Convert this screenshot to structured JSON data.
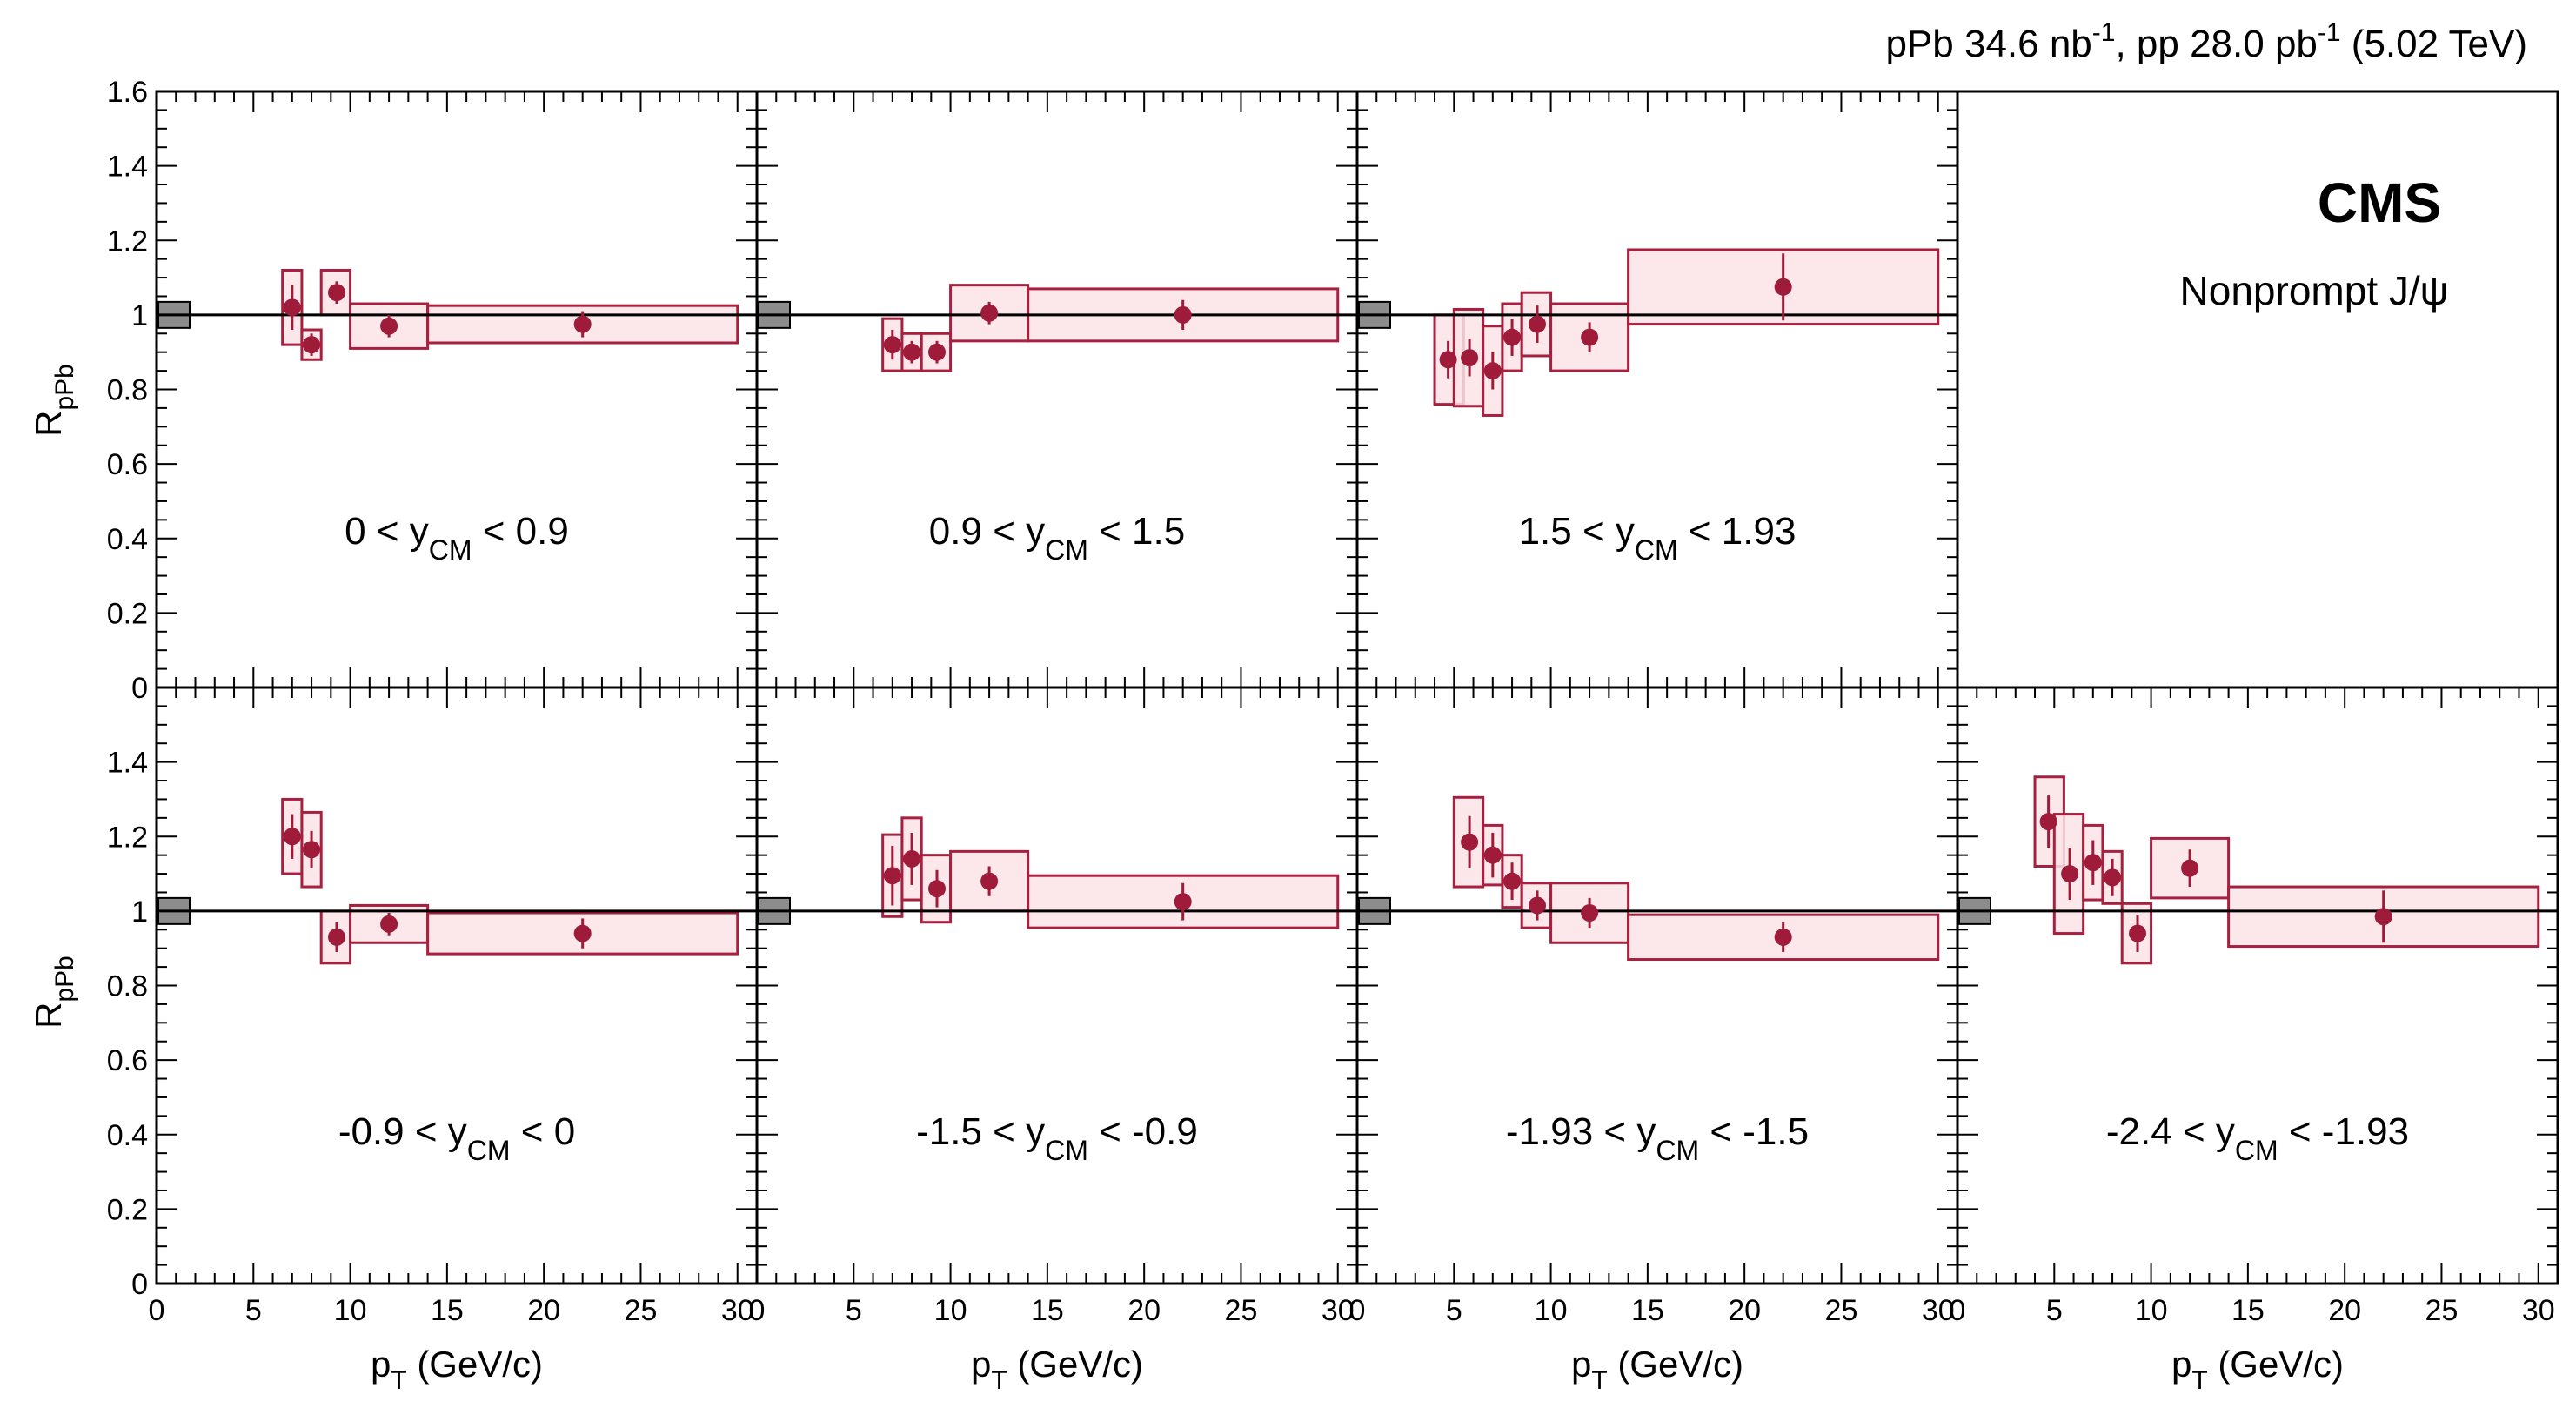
{
  "chart_data": {
    "type": "scatter",
    "title": "pPb 34.6 nb-1, pp 28.0 pb-1 (5.02 TeV)",
    "header": {
      "pPb_label": "pPb 34.6 nb",
      "pPb_exp": "-1",
      "pp_label": ", pp 28.0 pb",
      "pp_exp": "-1",
      "energy": " (5.02 TeV)"
    },
    "experiment": "CMS",
    "subtitle": "Nonprompt J/ψ",
    "xlabel": {
      "main": "p",
      "sub": "T",
      "rest": " (GeV/c)"
    },
    "ylabel": {
      "main": "R",
      "sub": "pPb"
    },
    "xlim": [
      0,
      31
    ],
    "ylim": [
      0,
      1.6
    ],
    "x_ticks": [
      "0",
      "5",
      "10",
      "15",
      "20",
      "25",
      "30"
    ],
    "y_ticks_top": [
      "0",
      "0.2",
      "0.4",
      "0.6",
      "0.8",
      "1",
      "1.2",
      "1.4",
      "1.6"
    ],
    "y_ticks_bottom": [
      "0",
      "0.2",
      "0.4",
      "0.6",
      "0.8",
      "1",
      "1.2",
      "1.4"
    ],
    "reference_line": 1.0,
    "global_uncertainty": [
      0.965,
      1.035
    ],
    "panels": [
      {
        "row": 0,
        "col": 0,
        "label": {
          "lo": "0 < y",
          "sub": "CM",
          "hi": " < 0.9"
        },
        "points": [
          {
            "x": 7.0,
            "y": 1.02,
            "stat": 0.06,
            "sys": 0.1,
            "xlo": 6.5,
            "xhi": 7.5
          },
          {
            "x": 8.0,
            "y": 0.92,
            "stat": 0.03,
            "sys": 0.04,
            "xlo": 7.5,
            "xhi": 8.5
          },
          {
            "x": 9.3,
            "y": 1.06,
            "stat": 0.03,
            "sys": 0.06,
            "xlo": 8.5,
            "xhi": 10.0
          },
          {
            "x": 12.0,
            "y": 0.97,
            "stat": 0.03,
            "sys": 0.06,
            "xlo": 10.0,
            "xhi": 14.0
          },
          {
            "x": 22.0,
            "y": 0.975,
            "stat": 0.035,
            "sys": 0.05,
            "xlo": 14.0,
            "xhi": 30.0
          }
        ]
      },
      {
        "row": 0,
        "col": 1,
        "label": {
          "lo": "0.9 < y",
          "sub": "CM",
          "hi": " < 1.5"
        },
        "points": [
          {
            "x": 7.0,
            "y": 0.92,
            "stat": 0.04,
            "sys": 0.07,
            "xlo": 6.5,
            "xhi": 7.5
          },
          {
            "x": 8.0,
            "y": 0.9,
            "stat": 0.03,
            "sys": 0.05,
            "xlo": 7.5,
            "xhi": 8.5
          },
          {
            "x": 9.3,
            "y": 0.9,
            "stat": 0.03,
            "sys": 0.05,
            "xlo": 8.5,
            "xhi": 10.0
          },
          {
            "x": 12.0,
            "y": 1.005,
            "stat": 0.03,
            "sys": 0.075,
            "xlo": 10.0,
            "xhi": 14.0
          },
          {
            "x": 22.0,
            "y": 1.0,
            "stat": 0.04,
            "sys": 0.07,
            "xlo": 14.0,
            "xhi": 30.0
          }
        ]
      },
      {
        "row": 0,
        "col": 2,
        "label": {
          "lo": "1.5 < y",
          "sub": "CM",
          "hi": " < 1.93"
        },
        "points": [
          {
            "x": 4.7,
            "y": 0.88,
            "stat": 0.05,
            "sys": 0.12,
            "xlo": 4.0,
            "xhi": 5.5
          },
          {
            "x": 5.8,
            "y": 0.885,
            "stat": 0.05,
            "sys": 0.13,
            "xlo": 5.0,
            "xhi": 6.5
          },
          {
            "x": 7.0,
            "y": 0.85,
            "stat": 0.05,
            "sys": 0.12,
            "xlo": 6.5,
            "xhi": 7.5
          },
          {
            "x": 8.0,
            "y": 0.94,
            "stat": 0.05,
            "sys": 0.09,
            "xlo": 7.5,
            "xhi": 8.5
          },
          {
            "x": 9.3,
            "y": 0.975,
            "stat": 0.05,
            "sys": 0.085,
            "xlo": 8.5,
            "xhi": 10.0
          },
          {
            "x": 12.0,
            "y": 0.94,
            "stat": 0.04,
            "sys": 0.09,
            "xlo": 10.0,
            "xhi": 14.0
          },
          {
            "x": 22.0,
            "y": 1.075,
            "stat": 0.09,
            "sys": 0.1,
            "xlo": 14.0,
            "xhi": 30.0
          }
        ]
      },
      {
        "row": 1,
        "col": 0,
        "label": {
          "lo": "-0.9 < y",
          "sub": "CM",
          "hi": " < 0"
        },
        "points": [
          {
            "x": 7.0,
            "y": 1.2,
            "stat": 0.06,
            "sys": 0.1,
            "xlo": 6.5,
            "xhi": 7.5
          },
          {
            "x": 8.0,
            "y": 1.165,
            "stat": 0.05,
            "sys": 0.1,
            "xlo": 7.5,
            "xhi": 8.5
          },
          {
            "x": 9.3,
            "y": 0.93,
            "stat": 0.04,
            "sys": 0.07,
            "xlo": 8.5,
            "xhi": 10.0
          },
          {
            "x": 12.0,
            "y": 0.965,
            "stat": 0.03,
            "sys": 0.05,
            "xlo": 10.0,
            "xhi": 14.0
          },
          {
            "x": 22.0,
            "y": 0.94,
            "stat": 0.04,
            "sys": 0.055,
            "xlo": 14.0,
            "xhi": 30.0
          }
        ]
      },
      {
        "row": 1,
        "col": 1,
        "label": {
          "lo": "-1.5 < y",
          "sub": "CM",
          "hi": " < -0.9"
        },
        "points": [
          {
            "x": 7.0,
            "y": 1.095,
            "stat": 0.08,
            "sys": 0.11,
            "xlo": 6.5,
            "xhi": 7.5
          },
          {
            "x": 8.0,
            "y": 1.14,
            "stat": 0.07,
            "sys": 0.11,
            "xlo": 7.5,
            "xhi": 8.5
          },
          {
            "x": 9.3,
            "y": 1.06,
            "stat": 0.05,
            "sys": 0.09,
            "xlo": 8.5,
            "xhi": 10.0
          },
          {
            "x": 12.0,
            "y": 1.08,
            "stat": 0.04,
            "sys": 0.08,
            "xlo": 10.0,
            "xhi": 14.0
          },
          {
            "x": 22.0,
            "y": 1.025,
            "stat": 0.05,
            "sys": 0.07,
            "xlo": 14.0,
            "xhi": 30.0
          }
        ]
      },
      {
        "row": 1,
        "col": 2,
        "label": {
          "lo": "-1.93 < y",
          "sub": "CM",
          "hi": " < -1.5"
        },
        "points": [
          {
            "x": 5.8,
            "y": 1.185,
            "stat": 0.07,
            "sys": 0.12,
            "xlo": 5.0,
            "xhi": 6.5
          },
          {
            "x": 7.0,
            "y": 1.15,
            "stat": 0.06,
            "sys": 0.08,
            "xlo": 6.5,
            "xhi": 7.5
          },
          {
            "x": 8.0,
            "y": 1.08,
            "stat": 0.05,
            "sys": 0.07,
            "xlo": 7.5,
            "xhi": 8.5
          },
          {
            "x": 9.3,
            "y": 1.015,
            "stat": 0.04,
            "sys": 0.06,
            "xlo": 8.5,
            "xhi": 10.0
          },
          {
            "x": 12.0,
            "y": 0.995,
            "stat": 0.04,
            "sys": 0.08,
            "xlo": 10.0,
            "xhi": 14.0
          },
          {
            "x": 22.0,
            "y": 0.93,
            "stat": 0.04,
            "sys": 0.06,
            "xlo": 14.0,
            "xhi": 30.0
          }
        ]
      },
      {
        "row": 1,
        "col": 3,
        "label": {
          "lo": "-2.4 < y",
          "sub": "CM",
          "hi": " < -1.93"
        },
        "points": [
          {
            "x": 4.7,
            "y": 1.24,
            "stat": 0.07,
            "sys": 0.12,
            "xlo": 4.0,
            "xhi": 5.5
          },
          {
            "x": 5.8,
            "y": 1.1,
            "stat": 0.07,
            "sys": 0.16,
            "xlo": 5.0,
            "xhi": 6.5
          },
          {
            "x": 7.0,
            "y": 1.13,
            "stat": 0.06,
            "sys": 0.1,
            "xlo": 6.5,
            "xhi": 7.5
          },
          {
            "x": 8.0,
            "y": 1.09,
            "stat": 0.05,
            "sys": 0.07,
            "xlo": 7.5,
            "xhi": 8.5
          },
          {
            "x": 9.3,
            "y": 0.94,
            "stat": 0.05,
            "sys": 0.08,
            "xlo": 8.5,
            "xhi": 10.0
          },
          {
            "x": 12.0,
            "y": 1.115,
            "stat": 0.05,
            "sys": 0.08,
            "xlo": 10.0,
            "xhi": 14.0
          },
          {
            "x": 22.0,
            "y": 0.985,
            "stat": 0.07,
            "sys": 0.08,
            "xlo": 14.0,
            "xhi": 30.0
          }
        ]
      }
    ],
    "colors": {
      "marker": "#9e1b3a",
      "box_fill": "#fbe3e6",
      "box_stroke": "#a8203f",
      "global_box": "#8c8c8c"
    }
  }
}
